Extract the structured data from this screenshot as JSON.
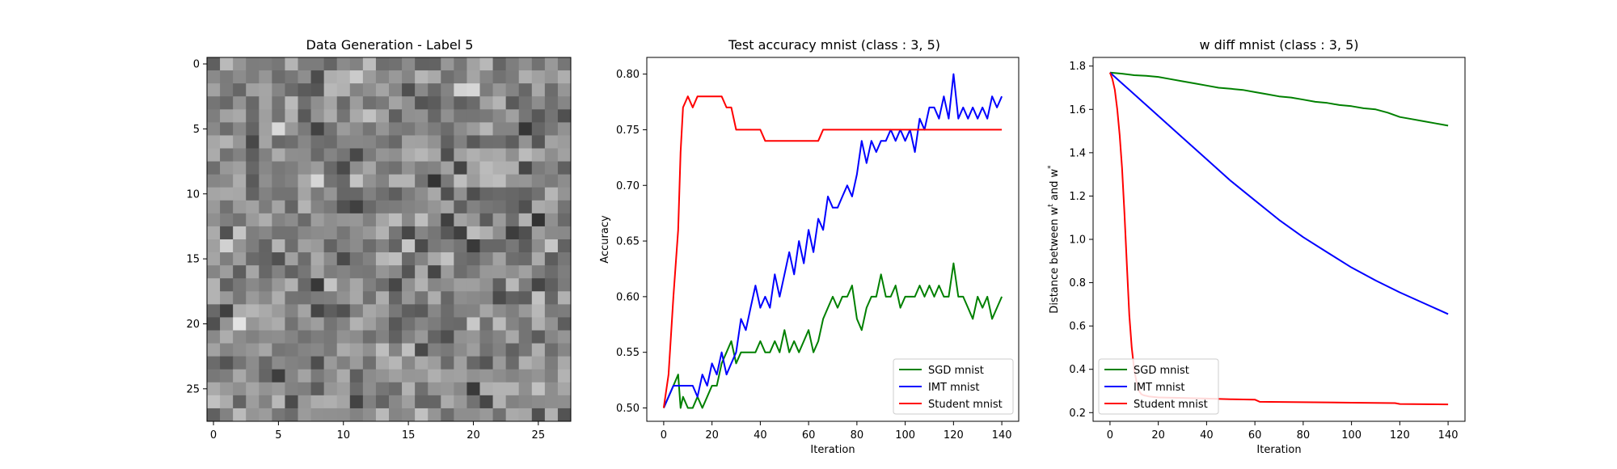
{
  "chart_data": [
    {
      "type": "heatmap",
      "title": "Data Generation - Label 5",
      "xlabel": "",
      "ylabel": "",
      "xticks": [
        0,
        5,
        10,
        15,
        20,
        25
      ],
      "yticks": [
        0,
        5,
        10,
        15,
        20,
        25
      ],
      "grid_size": [
        28,
        28
      ],
      "colormap": "gray",
      "seed": 1234567
    },
    {
      "type": "line",
      "title": "Test accuracy mnist (class : 3, 5)",
      "xlabel": "Iteration",
      "ylabel": "Accuracy",
      "xlim": [
        -7,
        147
      ],
      "ylim": [
        0.488,
        0.815
      ],
      "xticks": [
        0,
        20,
        40,
        60,
        80,
        100,
        120,
        140
      ],
      "yticks": [
        0.5,
        0.55,
        0.6,
        0.65,
        0.7,
        0.75,
        0.8
      ],
      "legend": "lower-right",
      "grid": false,
      "series": [
        {
          "name": "SGD mnist",
          "color": "#008000",
          "x": [
            0,
            2,
            4,
            6,
            7,
            8,
            10,
            12,
            14,
            16,
            18,
            20,
            22,
            24,
            26,
            28,
            30,
            32,
            34,
            36,
            38,
            40,
            42,
            44,
            46,
            48,
            50,
            52,
            54,
            56,
            58,
            60,
            62,
            64,
            66,
            68,
            70,
            72,
            74,
            76,
            78,
            80,
            82,
            84,
            86,
            88,
            90,
            92,
            94,
            96,
            98,
            100,
            102,
            104,
            106,
            108,
            110,
            112,
            114,
            116,
            118,
            120,
            122,
            124,
            126,
            128,
            130,
            132,
            134,
            136,
            138,
            140
          ],
          "values": [
            0.5,
            0.51,
            0.52,
            0.53,
            0.5,
            0.51,
            0.5,
            0.5,
            0.51,
            0.5,
            0.51,
            0.52,
            0.52,
            0.54,
            0.55,
            0.56,
            0.54,
            0.55,
            0.55,
            0.55,
            0.55,
            0.56,
            0.55,
            0.55,
            0.56,
            0.55,
            0.57,
            0.55,
            0.56,
            0.55,
            0.56,
            0.57,
            0.55,
            0.56,
            0.58,
            0.59,
            0.6,
            0.59,
            0.6,
            0.6,
            0.61,
            0.58,
            0.57,
            0.59,
            0.6,
            0.6,
            0.62,
            0.6,
            0.6,
            0.61,
            0.59,
            0.6,
            0.6,
            0.6,
            0.61,
            0.6,
            0.61,
            0.6,
            0.61,
            0.6,
            0.6,
            0.63,
            0.6,
            0.6,
            0.59,
            0.58,
            0.6,
            0.59,
            0.6,
            0.58,
            0.59,
            0.6
          ]
        },
        {
          "name": "IMT mnist",
          "color": "#0000ff",
          "x": [
            0,
            2,
            4,
            6,
            8,
            10,
            12,
            14,
            16,
            18,
            20,
            22,
            24,
            26,
            28,
            30,
            32,
            34,
            36,
            38,
            40,
            42,
            44,
            46,
            48,
            50,
            52,
            54,
            56,
            58,
            60,
            62,
            64,
            66,
            68,
            70,
            72,
            74,
            76,
            78,
            80,
            82,
            84,
            86,
            88,
            90,
            92,
            94,
            96,
            98,
            100,
            102,
            104,
            106,
            108,
            110,
            112,
            114,
            116,
            118,
            120,
            122,
            124,
            126,
            128,
            130,
            132,
            134,
            136,
            138,
            140
          ],
          "values": [
            0.5,
            0.51,
            0.52,
            0.52,
            0.52,
            0.52,
            0.52,
            0.51,
            0.53,
            0.52,
            0.54,
            0.53,
            0.55,
            0.53,
            0.54,
            0.55,
            0.58,
            0.57,
            0.59,
            0.61,
            0.59,
            0.6,
            0.59,
            0.62,
            0.6,
            0.62,
            0.64,
            0.62,
            0.65,
            0.63,
            0.66,
            0.64,
            0.67,
            0.66,
            0.69,
            0.68,
            0.68,
            0.69,
            0.7,
            0.69,
            0.71,
            0.74,
            0.72,
            0.74,
            0.73,
            0.74,
            0.74,
            0.75,
            0.74,
            0.75,
            0.74,
            0.75,
            0.73,
            0.76,
            0.75,
            0.77,
            0.77,
            0.76,
            0.78,
            0.76,
            0.8,
            0.76,
            0.77,
            0.76,
            0.77,
            0.76,
            0.77,
            0.76,
            0.78,
            0.77,
            0.78
          ]
        },
        {
          "name": "Student mnist",
          "color": "#ff0000",
          "x": [
            0,
            2,
            4,
            6,
            7,
            8,
            10,
            12,
            14,
            16,
            18,
            20,
            22,
            24,
            26,
            28,
            30,
            32,
            34,
            36,
            38,
            40,
            42,
            44,
            46,
            48,
            50,
            52,
            54,
            56,
            58,
            60,
            62,
            64,
            66,
            68,
            70,
            72,
            74,
            76,
            78,
            80,
            82,
            84,
            86,
            88,
            90,
            92,
            94,
            96,
            98,
            100,
            102,
            104,
            106,
            108,
            110,
            112,
            114,
            116,
            118,
            120,
            122,
            124,
            126,
            128,
            130,
            132,
            134,
            136,
            138,
            140
          ],
          "values": [
            0.5,
            0.53,
            0.6,
            0.66,
            0.73,
            0.77,
            0.78,
            0.77,
            0.78,
            0.78,
            0.78,
            0.78,
            0.78,
            0.78,
            0.77,
            0.77,
            0.75,
            0.75,
            0.75,
            0.75,
            0.75,
            0.75,
            0.74,
            0.74,
            0.74,
            0.74,
            0.74,
            0.74,
            0.74,
            0.74,
            0.74,
            0.74,
            0.74,
            0.74,
            0.75,
            0.75,
            0.75,
            0.75,
            0.75,
            0.75,
            0.75,
            0.75,
            0.75,
            0.75,
            0.75,
            0.75,
            0.75,
            0.75,
            0.75,
            0.75,
            0.75,
            0.75,
            0.75,
            0.75,
            0.75,
            0.75,
            0.75,
            0.75,
            0.75,
            0.75,
            0.75,
            0.75,
            0.75,
            0.75,
            0.75,
            0.75,
            0.75,
            0.75,
            0.75,
            0.75,
            0.75,
            0.75
          ]
        }
      ]
    },
    {
      "type": "line",
      "title": "w diff mnist (class : 3, 5)",
      "xlabel": "Iteration",
      "ylabel": "Distance between w^t and w^*",
      "xlim": [
        -7,
        147
      ],
      "ylim": [
        0.16,
        1.84
      ],
      "xticks": [
        0,
        20,
        40,
        60,
        80,
        100,
        120,
        140
      ],
      "yticks": [
        0.2,
        0.4,
        0.6,
        0.8,
        1.0,
        1.2,
        1.4,
        1.6,
        1.8
      ],
      "legend": "lower-left",
      "grid": false,
      "series": [
        {
          "name": "SGD mnist",
          "color": "#008000",
          "x": [
            0,
            5,
            10,
            15,
            20,
            25,
            30,
            35,
            40,
            45,
            50,
            55,
            60,
            65,
            70,
            75,
            80,
            85,
            90,
            95,
            100,
            105,
            110,
            115,
            120,
            125,
            130,
            135,
            140
          ],
          "values": [
            1.77,
            1.765,
            1.758,
            1.755,
            1.75,
            1.74,
            1.73,
            1.72,
            1.71,
            1.7,
            1.695,
            1.69,
            1.68,
            1.67,
            1.66,
            1.655,
            1.645,
            1.635,
            1.63,
            1.62,
            1.615,
            1.605,
            1.6,
            1.585,
            1.565,
            1.555,
            1.545,
            1.535,
            1.525
          ]
        },
        {
          "name": "IMT mnist",
          "color": "#0000ff",
          "x": [
            0,
            2,
            5,
            10,
            15,
            20,
            30,
            40,
            50,
            60,
            70,
            80,
            90,
            100,
            110,
            120,
            130,
            140
          ],
          "values": [
            1.77,
            1.75,
            1.72,
            1.67,
            1.62,
            1.57,
            1.47,
            1.37,
            1.27,
            1.18,
            1.09,
            1.01,
            0.94,
            0.87,
            0.81,
            0.755,
            0.705,
            0.655
          ]
        },
        {
          "name": "Student mnist",
          "color": "#ff0000",
          "x": [
            0,
            1,
            2,
            3,
            4,
            5,
            6,
            7,
            8,
            9,
            10,
            11,
            12,
            13,
            14,
            16,
            20,
            30,
            40,
            50,
            60,
            62,
            80,
            100,
            118,
            120,
            140
          ],
          "values": [
            1.77,
            1.74,
            1.69,
            1.6,
            1.48,
            1.33,
            1.12,
            0.88,
            0.65,
            0.5,
            0.4,
            0.34,
            0.3,
            0.285,
            0.28,
            0.275,
            0.27,
            0.268,
            0.265,
            0.262,
            0.26,
            0.25,
            0.248,
            0.246,
            0.244,
            0.24,
            0.238
          ]
        }
      ]
    }
  ]
}
